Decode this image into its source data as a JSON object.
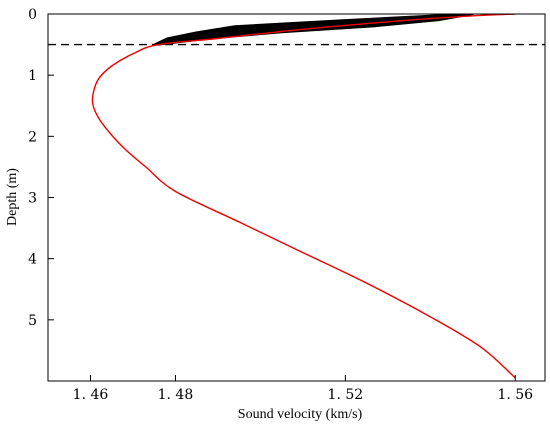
{
  "chart_data": {
    "type": "line",
    "xlabel": "Sound velocity (km/s)",
    "ylabel": "Depth (m)",
    "xlim": [
      1.45,
      1.567
    ],
    "ylim": [
      0,
      6
    ],
    "y_inverted": true,
    "x_ticks": [
      1.46,
      1.48,
      1.52,
      1.56
    ],
    "x_tick_labels": [
      "1. 46",
      "1. 48",
      "1. 52",
      "1. 56"
    ],
    "y_ticks": [
      0,
      1,
      2,
      3,
      4,
      5
    ],
    "y_tick_labels": [
      "0",
      "1",
      "2",
      "3",
      "4",
      "5"
    ],
    "grid": false,
    "legend": "none",
    "reference_line": {
      "depth": 0.5,
      "style": "dashed",
      "color": "#000000"
    },
    "band": {
      "color": "#000000",
      "left_edge": [
        [
          1.548,
          0.0
        ],
        [
          1.52,
          0.1
        ],
        [
          1.494,
          0.2
        ],
        [
          1.485,
          0.3
        ],
        [
          1.478,
          0.4
        ],
        [
          1.475,
          0.5
        ]
      ],
      "right_edge": [
        [
          1.55,
          0.0
        ],
        [
          1.542,
          0.1
        ],
        [
          1.527,
          0.2
        ],
        [
          1.505,
          0.3
        ],
        [
          1.488,
          0.4
        ],
        [
          1.476,
          0.5
        ]
      ]
    },
    "series": [
      {
        "color": "#ee0000",
        "points": [
          [
            1.56,
            0.0
          ],
          [
            1.55,
            0.03
          ],
          [
            1.535,
            0.1
          ],
          [
            1.51,
            0.25
          ],
          [
            1.49,
            0.4
          ],
          [
            1.476,
            0.5
          ],
          [
            1.47,
            0.65
          ],
          [
            1.465,
            0.85
          ],
          [
            1.462,
            1.05
          ],
          [
            1.4608,
            1.25
          ],
          [
            1.4605,
            1.45
          ],
          [
            1.4615,
            1.65
          ],
          [
            1.464,
            1.9
          ],
          [
            1.468,
            2.2
          ],
          [
            1.473,
            2.5
          ],
          [
            1.48,
            2.9
          ],
          [
            1.495,
            3.4
          ],
          [
            1.51,
            3.9
          ],
          [
            1.525,
            4.4
          ],
          [
            1.54,
            4.95
          ],
          [
            1.552,
            5.45
          ],
          [
            1.56,
            5.95
          ]
        ]
      }
    ]
  }
}
